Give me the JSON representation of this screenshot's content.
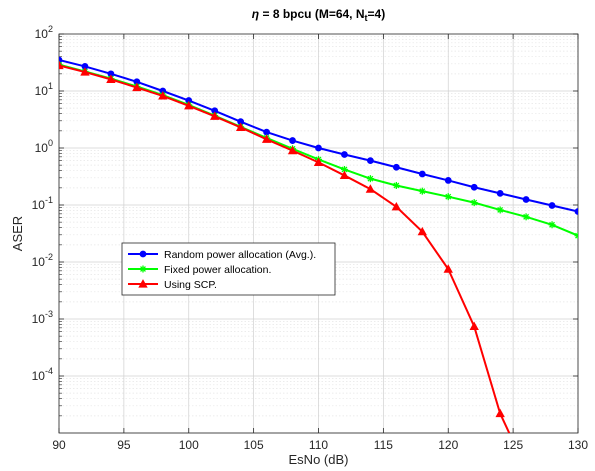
{
  "chart_data": {
    "type": "line",
    "title_parts": {
      "symbol": "η",
      "main": " = 8 bpcu (M=64, N",
      "sub": "t",
      "tail": "=4)"
    },
    "xlabel": "EsNo (dB)",
    "ylabel": "ASER",
    "xlim": [
      90,
      130
    ],
    "ylim": [
      1e-05,
      100
    ],
    "y_scale": "log",
    "x_ticks": [
      90,
      95,
      100,
      105,
      110,
      115,
      120,
      125,
      130
    ],
    "x_tick_labels": [
      "90",
      "95",
      "100",
      "105",
      "110",
      "115",
      "120",
      "125",
      "130"
    ],
    "y_ticks": [
      {
        "value": 100,
        "base": "10",
        "exp": "2"
      },
      {
        "value": 10,
        "base": "10",
        "exp": "1"
      },
      {
        "value": 1,
        "base": "10",
        "exp": "0"
      },
      {
        "value": 0.1,
        "base": "10",
        "exp": "-1"
      },
      {
        "value": 0.01,
        "base": "10",
        "exp": "-2"
      },
      {
        "value": 0.001,
        "base": "10",
        "exp": "-3"
      },
      {
        "value": 0.0001,
        "base": "10",
        "exp": "-4"
      }
    ],
    "grid": true,
    "legend_position": "middle-left",
    "series": [
      {
        "name": "Random power allocation (Avg.).",
        "color": "#0000ff",
        "marker": "circle",
        "x": [
          90,
          92,
          94,
          96,
          98,
          100,
          102,
          104,
          106,
          108,
          110,
          112,
          114,
          116,
          118,
          120,
          122,
          124,
          126,
          128,
          130
        ],
        "y": [
          35,
          27,
          20,
          14.5,
          10,
          6.8,
          4.5,
          2.9,
          1.9,
          1.35,
          1.0,
          0.77,
          0.6,
          0.46,
          0.35,
          0.27,
          0.205,
          0.16,
          0.125,
          0.098,
          0.077
        ]
      },
      {
        "name": "Fixed power allocation.",
        "color": "#00ff00",
        "marker": "star",
        "x": [
          90,
          92,
          94,
          96,
          98,
          100,
          102,
          104,
          106,
          108,
          110,
          112,
          114,
          116,
          118,
          120,
          122,
          124,
          126,
          128,
          130
        ],
        "y": [
          29,
          22,
          16.5,
          12,
          8.5,
          5.7,
          3.7,
          2.35,
          1.5,
          0.97,
          0.63,
          0.42,
          0.29,
          0.22,
          0.175,
          0.14,
          0.11,
          0.082,
          0.062,
          0.045,
          0.029
        ]
      },
      {
        "name": "Using SCP.",
        "color": "#ff0000",
        "marker": "triangle",
        "x": [
          90,
          92,
          94,
          96,
          98,
          100,
          102,
          104,
          106,
          108,
          110,
          112,
          114,
          116,
          118,
          120,
          122,
          124,
          124.7
        ],
        "y": [
          28,
          21.5,
          16,
          11.5,
          8.2,
          5.5,
          3.6,
          2.3,
          1.42,
          0.9,
          0.56,
          0.33,
          0.19,
          0.093,
          0.034,
          0.0075,
          0.00074,
          2.2e-05,
          1e-05
        ]
      }
    ]
  }
}
